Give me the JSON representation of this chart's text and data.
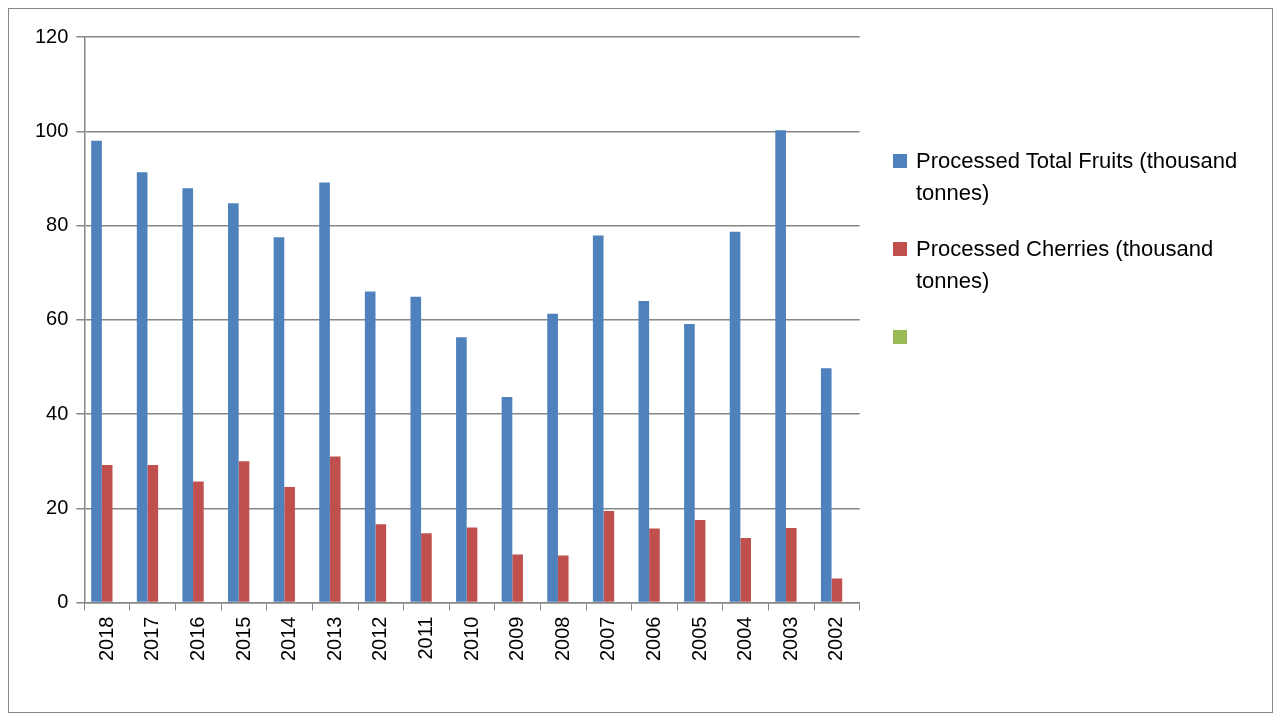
{
  "chart_data": {
    "type": "bar",
    "categories": [
      "2018",
      "2017",
      "2016",
      "2015",
      "2014",
      "2013",
      "2012",
      "2011",
      "2010",
      "2009",
      "2008",
      "2007",
      "2006",
      "2005",
      "2004",
      "2003",
      "2002"
    ],
    "series": [
      {
        "name": "Processed Total Fruits (thousand tonnes)",
        "color": "#4f81bd",
        "values": [
          98.0,
          91.3,
          87.9,
          84.7,
          77.5,
          89.1,
          66.0,
          64.9,
          56.3,
          43.6,
          61.3,
          77.9,
          64.0,
          59.1,
          78.7,
          100.2,
          49.7
        ]
      },
      {
        "name": "Processed Cherries (thousand tonnes)",
        "color": "#c0504d",
        "values": [
          29.2,
          29.2,
          25.7,
          30.0,
          24.5,
          31.0,
          16.6,
          14.7,
          15.9,
          10.2,
          10.0,
          19.4,
          15.7,
          17.5,
          13.7,
          15.8,
          5.1
        ]
      },
      {
        "color": "#9bbb59",
        "values": [
          null,
          null,
          null,
          null,
          null,
          null,
          null,
          null,
          null,
          null,
          null,
          null,
          null,
          null,
          null,
          null,
          null
        ]
      }
    ],
    "ylim": [
      0,
      120
    ],
    "yticks": [
      0,
      20,
      40,
      60,
      80,
      100,
      120
    ],
    "grid": "y",
    "legend": "right"
  }
}
